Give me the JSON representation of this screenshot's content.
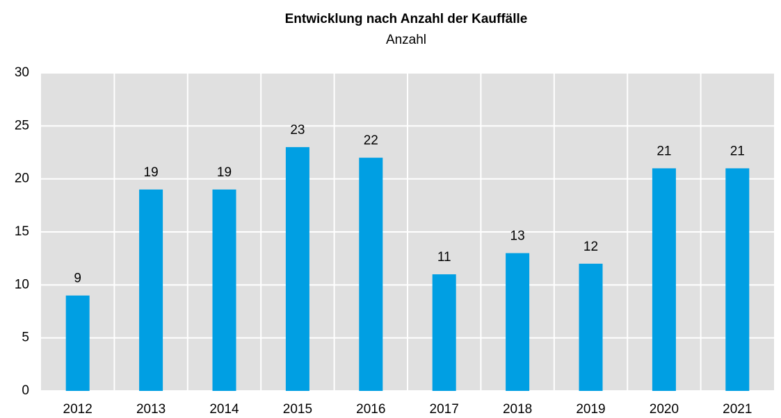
{
  "chart_data": {
    "type": "bar",
    "title": "Entwicklung nach Anzahl der Kauffälle",
    "subtitle": "Anzahl",
    "categories": [
      "2012",
      "2013",
      "2014",
      "2015",
      "2016",
      "2017",
      "2018",
      "2019",
      "2020",
      "2021"
    ],
    "values": [
      9,
      19,
      19,
      23,
      22,
      11,
      13,
      12,
      21,
      21
    ],
    "color": "#009fe3",
    "ylim": [
      0,
      30
    ],
    "yticks": [
      0,
      5,
      10,
      15,
      20,
      25,
      30
    ],
    "grid": true
  }
}
